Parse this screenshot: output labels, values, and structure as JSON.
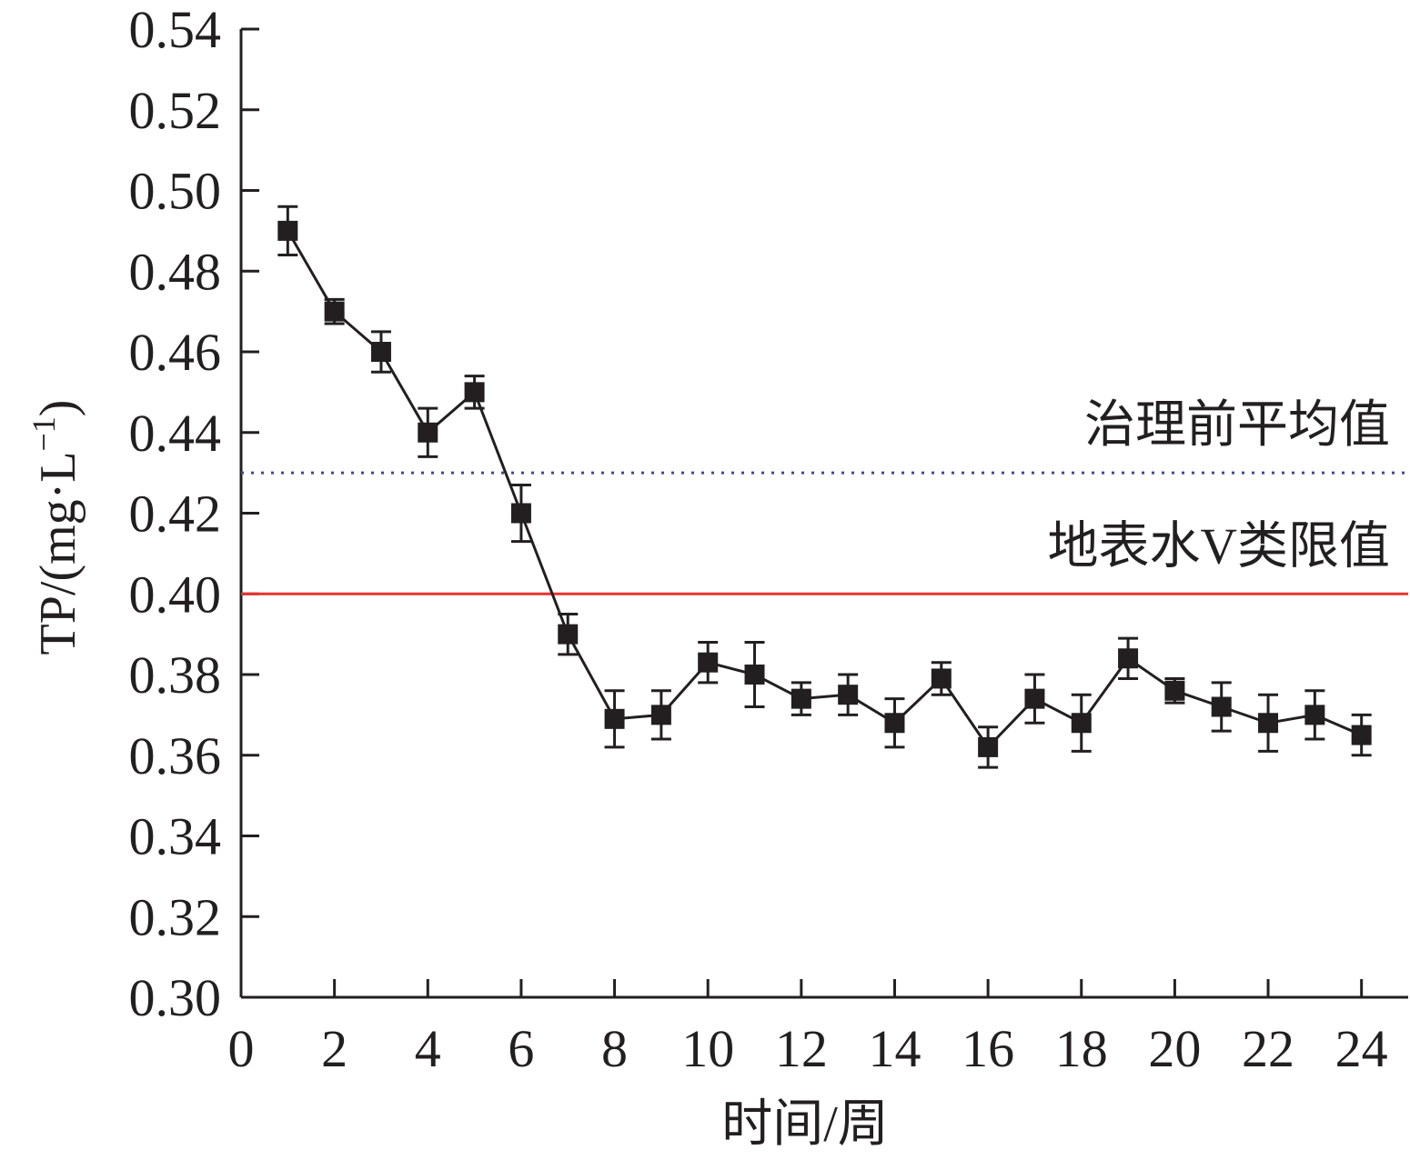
{
  "chart_data": {
    "type": "line",
    "xlabel": "时间/周",
    "ylabel_main": "TP/(mg·L",
    "ylabel_sup": "−1",
    "ylabel_close": ")",
    "xlim": [
      0,
      25
    ],
    "ylim": [
      0.3,
      0.54
    ],
    "x_ticks": [
      0,
      2,
      4,
      6,
      8,
      10,
      12,
      14,
      16,
      18,
      20,
      22,
      24
    ],
    "x_tick_labels": [
      "0",
      "2",
      "4",
      "6",
      "8",
      "10",
      "12",
      "14",
      "16",
      "18",
      "20",
      "22",
      "24"
    ],
    "y_ticks": [
      0.3,
      0.32,
      0.34,
      0.36,
      0.38,
      0.4,
      0.42,
      0.44,
      0.46,
      0.48,
      0.5,
      0.52,
      0.54
    ],
    "y_tick_labels": [
      "0.30",
      "0.32",
      "0.34",
      "0.36",
      "0.38",
      "0.40",
      "0.42",
      "0.44",
      "0.46",
      "0.48",
      "0.50",
      "0.52",
      "0.54"
    ],
    "grid": false,
    "series": [
      {
        "x": [
          1,
          2,
          3,
          4,
          5,
          6,
          7,
          8,
          9,
          10,
          11,
          12,
          13,
          14,
          15,
          16,
          17,
          18,
          19,
          20,
          21,
          22,
          23,
          24
        ],
        "y": [
          0.49,
          0.47,
          0.46,
          0.44,
          0.45,
          0.42,
          0.39,
          0.369,
          0.37,
          0.383,
          0.38,
          0.374,
          0.375,
          0.368,
          0.379,
          0.362,
          0.374,
          0.368,
          0.384,
          0.376,
          0.372,
          0.368,
          0.37,
          0.365
        ],
        "err": [
          0.006,
          0.003,
          0.005,
          0.006,
          0.004,
          0.007,
          0.005,
          0.007,
          0.006,
          0.005,
          0.008,
          0.004,
          0.005,
          0.006,
          0.004,
          0.005,
          0.006,
          0.007,
          0.005,
          0.003,
          0.006,
          0.007,
          0.006,
          0.005
        ],
        "color": "#231f20",
        "marker": "square"
      }
    ],
    "reference_lines": [
      {
        "y": 0.43,
        "label": "治理前平均值",
        "color": "#3a4a9a",
        "style": "dotted"
      },
      {
        "y": 0.4,
        "label": "地表水V类限值",
        "color": "#e8322d",
        "style": "solid"
      }
    ]
  }
}
